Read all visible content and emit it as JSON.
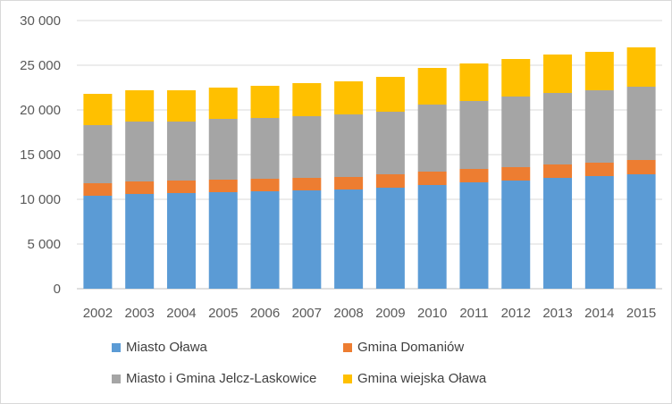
{
  "chart_data": {
    "type": "bar",
    "stacked": true,
    "categories": [
      "2002",
      "2003",
      "2004",
      "2005",
      "2006",
      "2007",
      "2008",
      "2009",
      "2010",
      "2011",
      "2012",
      "2013",
      "2014",
      "2015"
    ],
    "series": [
      {
        "name": "Miasto Oława",
        "color": "#5B9BD5",
        "values": [
          10400,
          10600,
          10700,
          10800,
          10900,
          11000,
          11100,
          11300,
          11600,
          11900,
          12100,
          12400,
          12600,
          12800
        ]
      },
      {
        "name": "Gmina Domaniów",
        "color": "#ED7D31",
        "values": [
          1400,
          1400,
          1400,
          1400,
          1400,
          1400,
          1400,
          1500,
          1500,
          1500,
          1500,
          1500,
          1500,
          1600
        ]
      },
      {
        "name": "Miasto i Gmina Jelcz-Laskowice",
        "color": "#A5A5A5",
        "values": [
          6500,
          6700,
          6600,
          6800,
          6800,
          6900,
          7000,
          7000,
          7500,
          7600,
          7900,
          8000,
          8100,
          8200
        ]
      },
      {
        "name": "Gmina wiejska Oława",
        "color": "#FFC000",
        "values": [
          3500,
          3500,
          3500,
          3500,
          3600,
          3700,
          3700,
          3900,
          4100,
          4200,
          4200,
          4300,
          4300,
          4400
        ]
      }
    ],
    "yticks": [
      "0",
      "5 000",
      "10 000",
      "15 000",
      "20 000",
      "25 000",
      "30 000"
    ],
    "ylim": [
      0,
      30000
    ],
    "grid": true,
    "legend_position": "bottom"
  }
}
